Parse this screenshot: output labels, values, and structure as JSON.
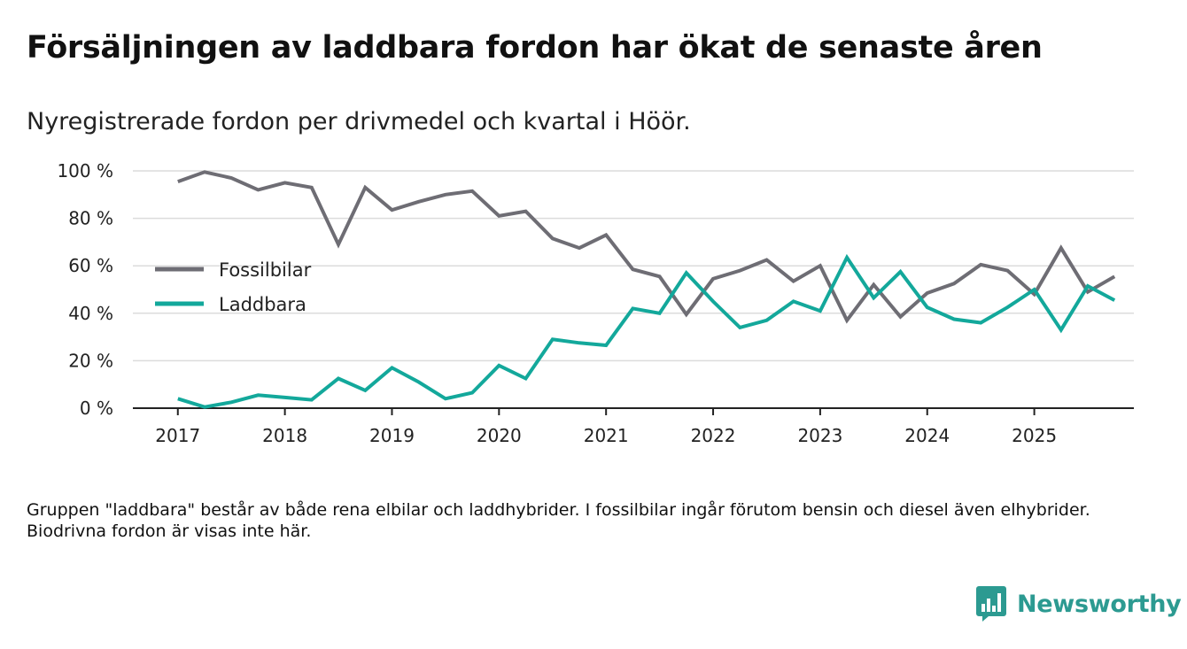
{
  "header": {
    "title": "Försäljningen av laddbara fordon har ökat de senaste åren",
    "subtitle": "Nyregistrerade fordon per drivmedel och kvartal i Höör."
  },
  "footnote": "Gruppen \"laddbara\" består av både rena elbilar och laddhybrider. I fossilbilar ingår förutom bensin och diesel även elhybrider. Biodrivna fordon är visas inte här.",
  "brand": {
    "name": "Newsworthy",
    "icon": "newsworthy-logo-icon"
  },
  "colors": {
    "fossil": "#6e6d74",
    "laddbara": "#13a89b",
    "grid": "#dcdcdc",
    "axis": "#222222",
    "brand": "#2c9a91"
  },
  "chart_data": {
    "type": "line",
    "title": "Försäljningen av laddbara fordon har ökat de senaste åren",
    "xlabel": "",
    "ylabel": "",
    "x": [
      2017.0,
      2017.25,
      2017.5,
      2017.75,
      2018.0,
      2018.25,
      2018.5,
      2018.75,
      2019.0,
      2019.25,
      2019.5,
      2019.75,
      2020.0,
      2020.25,
      2020.5,
      2020.75,
      2021.0,
      2021.25,
      2021.5,
      2021.75,
      2022.0,
      2022.25,
      2022.5,
      2022.75,
      2023.0,
      2023.25,
      2023.5,
      2023.75,
      2024.0,
      2024.25,
      2024.5,
      2024.75,
      2025.0,
      2025.25,
      2025.5,
      2025.75
    ],
    "xlim": [
      2016.58,
      2025.93
    ],
    "xticks": [
      2017,
      2018,
      2019,
      2020,
      2021,
      2022,
      2023,
      2024,
      2025
    ],
    "xtick_labels": [
      "2017",
      "2018",
      "2019",
      "2020",
      "2021",
      "2022",
      "2023",
      "2024",
      "2025"
    ],
    "ylim": [
      0,
      100
    ],
    "yticks": [
      0,
      20,
      40,
      60,
      80,
      100
    ],
    "ytick_labels": [
      "0 %",
      "20 %",
      "40 %",
      "60 %",
      "80 %",
      "100 %"
    ],
    "grid": true,
    "legend": "left",
    "series": [
      {
        "name": "Fossilbilar",
        "color": "#6e6d74",
        "values": [
          95.5,
          99.5,
          97,
          92,
          95,
          93,
          69,
          93,
          83.5,
          87,
          90,
          91.5,
          81,
          83,
          71.5,
          67.5,
          73,
          58.5,
          55.5,
          39.5,
          54.5,
          58,
          62.5,
          53.5,
          60,
          37,
          52,
          38.5,
          48.5,
          52.5,
          60.5,
          58,
          48,
          67.5,
          49,
          55.5
        ]
      },
      {
        "name": "Laddbara",
        "color": "#13a89b",
        "values": [
          4,
          0.5,
          2.5,
          5.5,
          4.5,
          3.5,
          12.5,
          7.5,
          17,
          11,
          4,
          6.5,
          18,
          12.5,
          29,
          27.5,
          26.5,
          42,
          40,
          57,
          45,
          34,
          37,
          45,
          41,
          63.5,
          46.5,
          57.5,
          42.5,
          37.5,
          36,
          42.5,
          50,
          33,
          51.5,
          45.5
        ]
      }
    ]
  }
}
